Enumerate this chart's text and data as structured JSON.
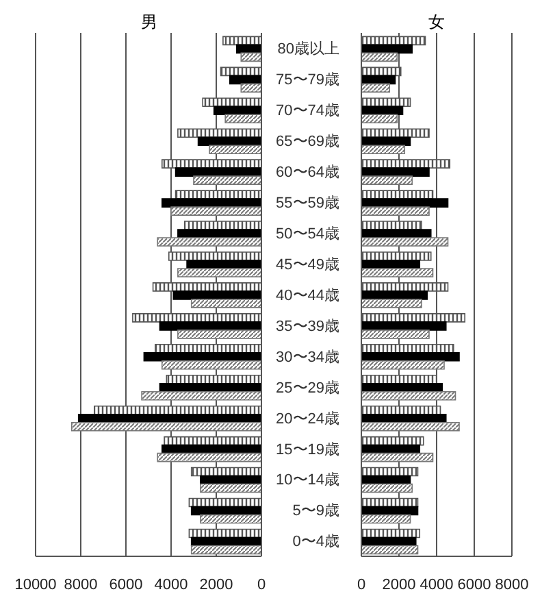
{
  "chart_data": [
    {
      "type": "bar",
      "orientation": "horizontal",
      "title": "男",
      "categories": [
        null,
        null,
        null,
        null,
        null,
        null,
        null,
        null,
        null,
        null,
        null,
        null,
        null,
        null,
        null,
        null,
        null
      ],
      "series": [
        {
          "color": "#555555",
          "values": [
            1700,
            1800,
            2600,
            3700,
            4400,
            3800,
            3400,
            4100,
            4800,
            5700,
            4700,
            4200,
            7400,
            4300,
            3100,
            3200,
            3200
          ]
        },
        {
          "color": "#000000",
          "values": [
            1100,
            1400,
            2100,
            2800,
            3800,
            4400,
            3700,
            3300,
            3900,
            4500,
            5200,
            4500,
            8100,
            4400,
            2700,
            3100,
            3100
          ]
        },
        {
          "color": "#777777",
          "values": [
            900,
            900,
            1600,
            2300,
            3000,
            4000,
            4600,
            3700,
            3100,
            3700,
            4400,
            5300,
            8400,
            4600,
            2700,
            2700,
            3100
          ]
        }
      ],
      "xlim": [
        10000,
        0
      ],
      "xticks": [
        10000,
        8000,
        6000,
        4000,
        2000,
        0
      ],
      "grid": "x",
      "tick_labels": "x"
    },
    {
      "type": "bar",
      "orientation": "horizontal",
      "title": "女",
      "categories": [
        "80歳以上",
        "75〜79歳",
        "70〜74歳",
        "65〜69歳",
        "60〜64歳",
        "55〜59歳",
        "50〜54歳",
        "45〜49歳",
        "40〜44歳",
        "35〜39歳",
        "30〜34歳",
        "25〜29歳",
        "20〜24歳",
        "15〜19歳",
        "10〜14歳",
        "5〜9歳",
        "0〜4歳"
      ],
      "series": [
        {
          "color": "#555555",
          "values": [
            3400,
            2100,
            2600,
            3600,
            4700,
            3800,
            3200,
            3700,
            4600,
            5500,
            4900,
            4000,
            4200,
            3300,
            3000,
            3000,
            3100
          ]
        },
        {
          "color": "#000000",
          "values": [
            2700,
            1800,
            2200,
            2600,
            3600,
            4600,
            3700,
            3100,
            3500,
            4500,
            5200,
            4300,
            4500,
            3100,
            2600,
            3000,
            2900
          ]
        },
        {
          "color": "#777777",
          "values": [
            1900,
            1500,
            1900,
            2300,
            2700,
            3600,
            4600,
            3800,
            3200,
            3600,
            4400,
            5000,
            5200,
            3800,
            2700,
            2600,
            3000
          ]
        }
      ],
      "xlim": [
        0,
        8000
      ],
      "xticks": [
        0,
        2000,
        4000,
        6000,
        8000
      ],
      "grid": "x"
    }
  ]
}
